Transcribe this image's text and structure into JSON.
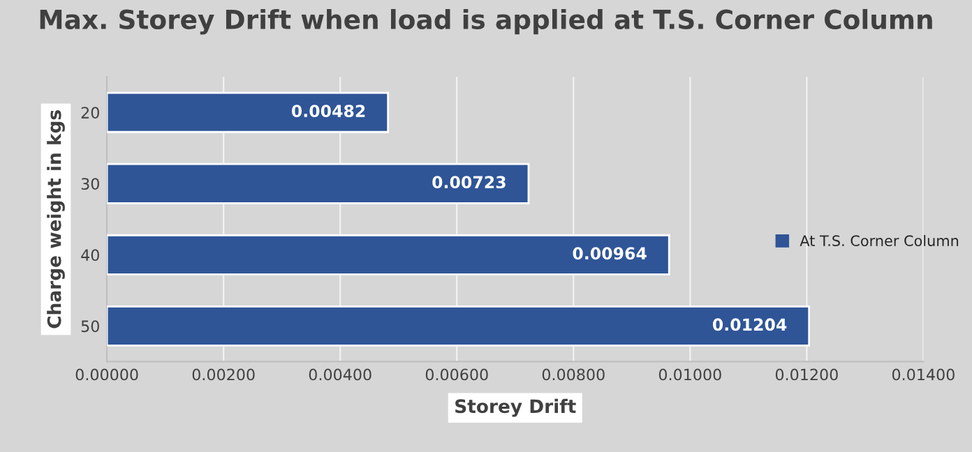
{
  "chart_data": {
    "type": "bar",
    "orientation": "horizontal",
    "title": "Max. Storey Drift when load is applied at T.S. Corner Column",
    "xlabel": "Storey Drift",
    "ylabel": "Charge weight in kgs",
    "categories": [
      "20",
      "30",
      "40",
      "50"
    ],
    "series": [
      {
        "name": "At T.S. Corner Column",
        "color": "#2f5597",
        "values": [
          0.00482,
          0.00723,
          0.00964,
          0.01204
        ]
      }
    ],
    "data_labels": true,
    "xlim": [
      0,
      0.014
    ],
    "xticks": [
      {
        "value": 0,
        "label": "0.00000"
      },
      {
        "value": 0.002,
        "label": "0.00200"
      },
      {
        "value": 0.004,
        "label": "0.00400"
      },
      {
        "value": 0.006,
        "label": "0.00600"
      },
      {
        "value": 0.008,
        "label": "0.00800"
      },
      {
        "value": 0.01,
        "label": "0.01000"
      },
      {
        "value": 0.012,
        "label": "0.01200"
      },
      {
        "value": 0.014,
        "label": "0.01400"
      }
    ],
    "grid": "x",
    "legend": "right"
  }
}
